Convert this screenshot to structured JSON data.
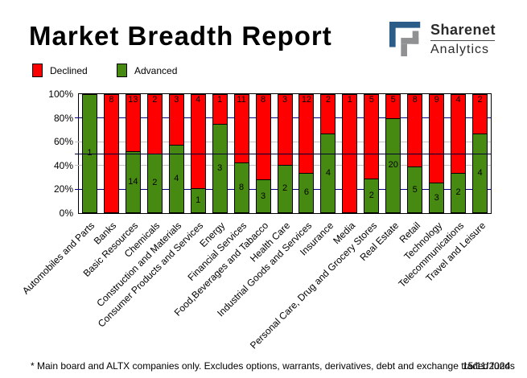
{
  "title": "Market Breadth Report",
  "logo": {
    "name_top": "Sharenet",
    "name_bottom": "Analytics",
    "blue": "#2c5d88",
    "gray": "#8f9193"
  },
  "legend": {
    "items": [
      {
        "label": "Declined",
        "color": "#ff0000"
      },
      {
        "label": "Advanced",
        "color": "#478a12"
      }
    ]
  },
  "chart_data": {
    "type": "bar",
    "stacked_percent": true,
    "title": "Market Breadth Report",
    "categories": [
      "Automobiles and Parts",
      "Banks",
      "Basic Resources",
      "Chemicals",
      "Construction and Materials",
      "Consumer Products and Services",
      "Energy",
      "Financial Services",
      "Food,Beverages and Tabacco",
      "Health Care",
      "Industrial Goods and Services",
      "Insurance",
      "Media",
      "Personal Care, Drug and Grocery Stores",
      "Real Estate",
      "Retail",
      "Technology",
      "Telecommunications",
      "Travel and Leisure"
    ],
    "series": [
      {
        "name": "Declined",
        "color": "#ff0000",
        "values": [
          0,
          8,
          13,
          2,
          3,
          4,
          1,
          11,
          8,
          3,
          12,
          2,
          1,
          5,
          5,
          8,
          9,
          4,
          2
        ]
      },
      {
        "name": "Advanced",
        "color": "#478a12",
        "values": [
          1,
          0,
          14,
          2,
          4,
          1,
          3,
          8,
          3,
          2,
          6,
          4,
          0,
          2,
          20,
          5,
          3,
          2,
          4
        ]
      }
    ],
    "ylim": [
      0,
      100
    ],
    "y_ticks": [
      {
        "label": "100%",
        "value": 100
      },
      {
        "label": "80%",
        "value": 80
      },
      {
        "label": "60%",
        "value": 60
      },
      {
        "label": "40%",
        "value": 40
      },
      {
        "label": "20%",
        "value": 20
      },
      {
        "label": "0%",
        "value": 0
      }
    ],
    "gridlines": [
      {
        "value": 80,
        "color": "#000080"
      },
      {
        "value": 60,
        "color": "#c0c0c0"
      },
      {
        "value": 40,
        "color": "#c0c0c0"
      },
      {
        "value": 20,
        "color": "#000080"
      }
    ],
    "midline": {
      "value": 50,
      "color": "#000033"
    },
    "legend_position": "top-left"
  },
  "footnote": {
    "note": "* Main board and ALTX companies only. Excludes options, warrants, derivatives, debt and exchange traded funds",
    "date": "15/11/2024"
  }
}
